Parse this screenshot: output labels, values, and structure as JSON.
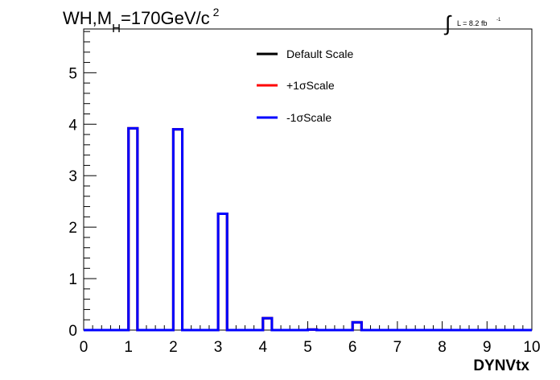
{
  "chart_data": {
    "type": "line",
    "title_main": "WH,M",
    "title_sub": "H",
    "title_rest": "=170GeV/c",
    "title_sup": "2",
    "lumi_main": "L = 8.2 fb",
    "lumi_sup": "-1",
    "xlabel": "DYNVtx",
    "ylabel": "",
    "xlim": [
      0,
      10
    ],
    "ylim": [
      0,
      5.85
    ],
    "x_ticks": [
      "0",
      "1",
      "2",
      "3",
      "4",
      "5",
      "6",
      "7",
      "8",
      "9",
      "10"
    ],
    "y_ticks": [
      "0",
      "1",
      "2",
      "3",
      "4",
      "5"
    ],
    "bin_width": 0.2,
    "bin_edges_start": 0,
    "legend_position": "top-center",
    "series": [
      {
        "name": "Default Scale",
        "color": "#000000",
        "values": [
          0,
          0,
          0,
          0,
          0,
          3.92,
          0,
          0,
          0,
          0,
          3.9,
          0,
          0,
          0,
          0,
          2.26,
          0,
          0,
          0,
          0,
          0.23,
          0,
          0,
          0,
          0,
          0.01,
          0,
          0,
          0,
          0,
          0.15,
          0,
          0,
          0,
          0,
          0,
          0,
          0,
          0,
          0,
          0,
          0,
          0,
          0,
          0,
          0,
          0,
          0,
          0,
          0
        ]
      },
      {
        "name": "+1σScale",
        "color": "#ff0000",
        "values": [
          0,
          0,
          0,
          0,
          0,
          3.92,
          0,
          0,
          0,
          0,
          3.9,
          0,
          0,
          0,
          0,
          2.26,
          0,
          0,
          0,
          0,
          0.23,
          0,
          0,
          0,
          0,
          0.01,
          0,
          0,
          0,
          0,
          0.15,
          0,
          0,
          0,
          0,
          0,
          0,
          0,
          0,
          0,
          0,
          0,
          0,
          0,
          0,
          0,
          0,
          0,
          0,
          0
        ]
      },
      {
        "name": "-1σScale",
        "color": "#0000ff",
        "values": [
          0,
          0,
          0,
          0,
          0,
          3.92,
          0,
          0,
          0,
          0,
          3.9,
          0,
          0,
          0,
          0,
          2.26,
          0,
          0,
          0,
          0,
          0.23,
          0,
          0,
          0,
          0,
          0.01,
          0,
          0,
          0,
          0,
          0.15,
          0,
          0,
          0,
          0,
          0,
          0,
          0,
          0,
          0,
          0,
          0,
          0,
          0,
          0,
          0,
          0,
          0,
          0,
          0
        ]
      }
    ]
  }
}
